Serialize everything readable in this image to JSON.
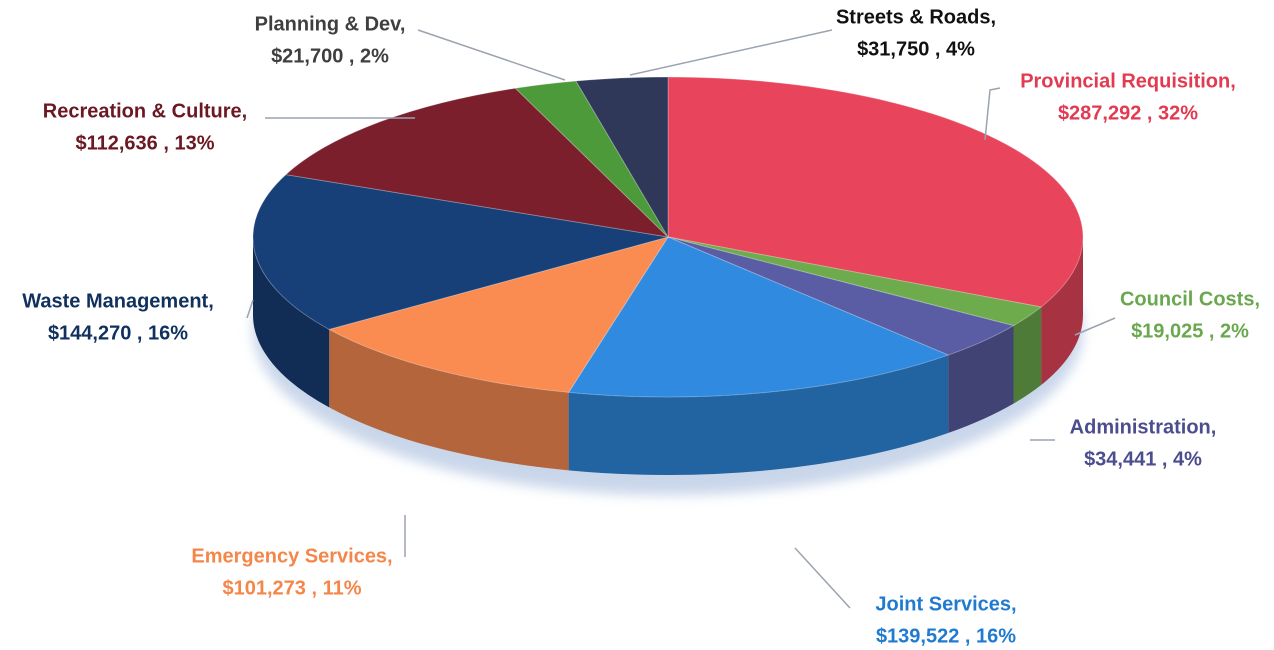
{
  "chart_data": {
    "type": "pie3d",
    "categories": [
      "Provincial Requisition,",
      "Council Costs,",
      "Administration,",
      "Joint Services,",
      "Emergency Services,",
      "Waste Management,",
      "Recreation & Culture,",
      "Planning & Dev,",
      "Streets & Roads,"
    ],
    "values": [
      287292,
      19025,
      34441,
      139522,
      101273,
      144270,
      112636,
      21700,
      31750
    ],
    "value_labels": [
      "$287,292 , 32%",
      "$19,025 , 2%",
      "$34,441 , 4%",
      "$139,522 , 16%",
      "$101,273 , 11%",
      "$144,270 , 16%",
      "$112,636 , 13%",
      "$21,700 , 2%",
      "$31,750 , 4%"
    ],
    "colors": [
      "#e8455c",
      "#6dab4c",
      "#5a5da3",
      "#2f8ae0",
      "#fa8c52",
      "#173f78",
      "#7a1f2b",
      "#4c9a3a",
      "#30385a"
    ],
    "label_colors": [
      "#e23a50",
      "#6aa84f",
      "#4b4d8f",
      "#1f7ad0",
      "#f5864a",
      "#10305e",
      "#6b1822",
      "#3f3f3f",
      "#111111"
    ]
  }
}
